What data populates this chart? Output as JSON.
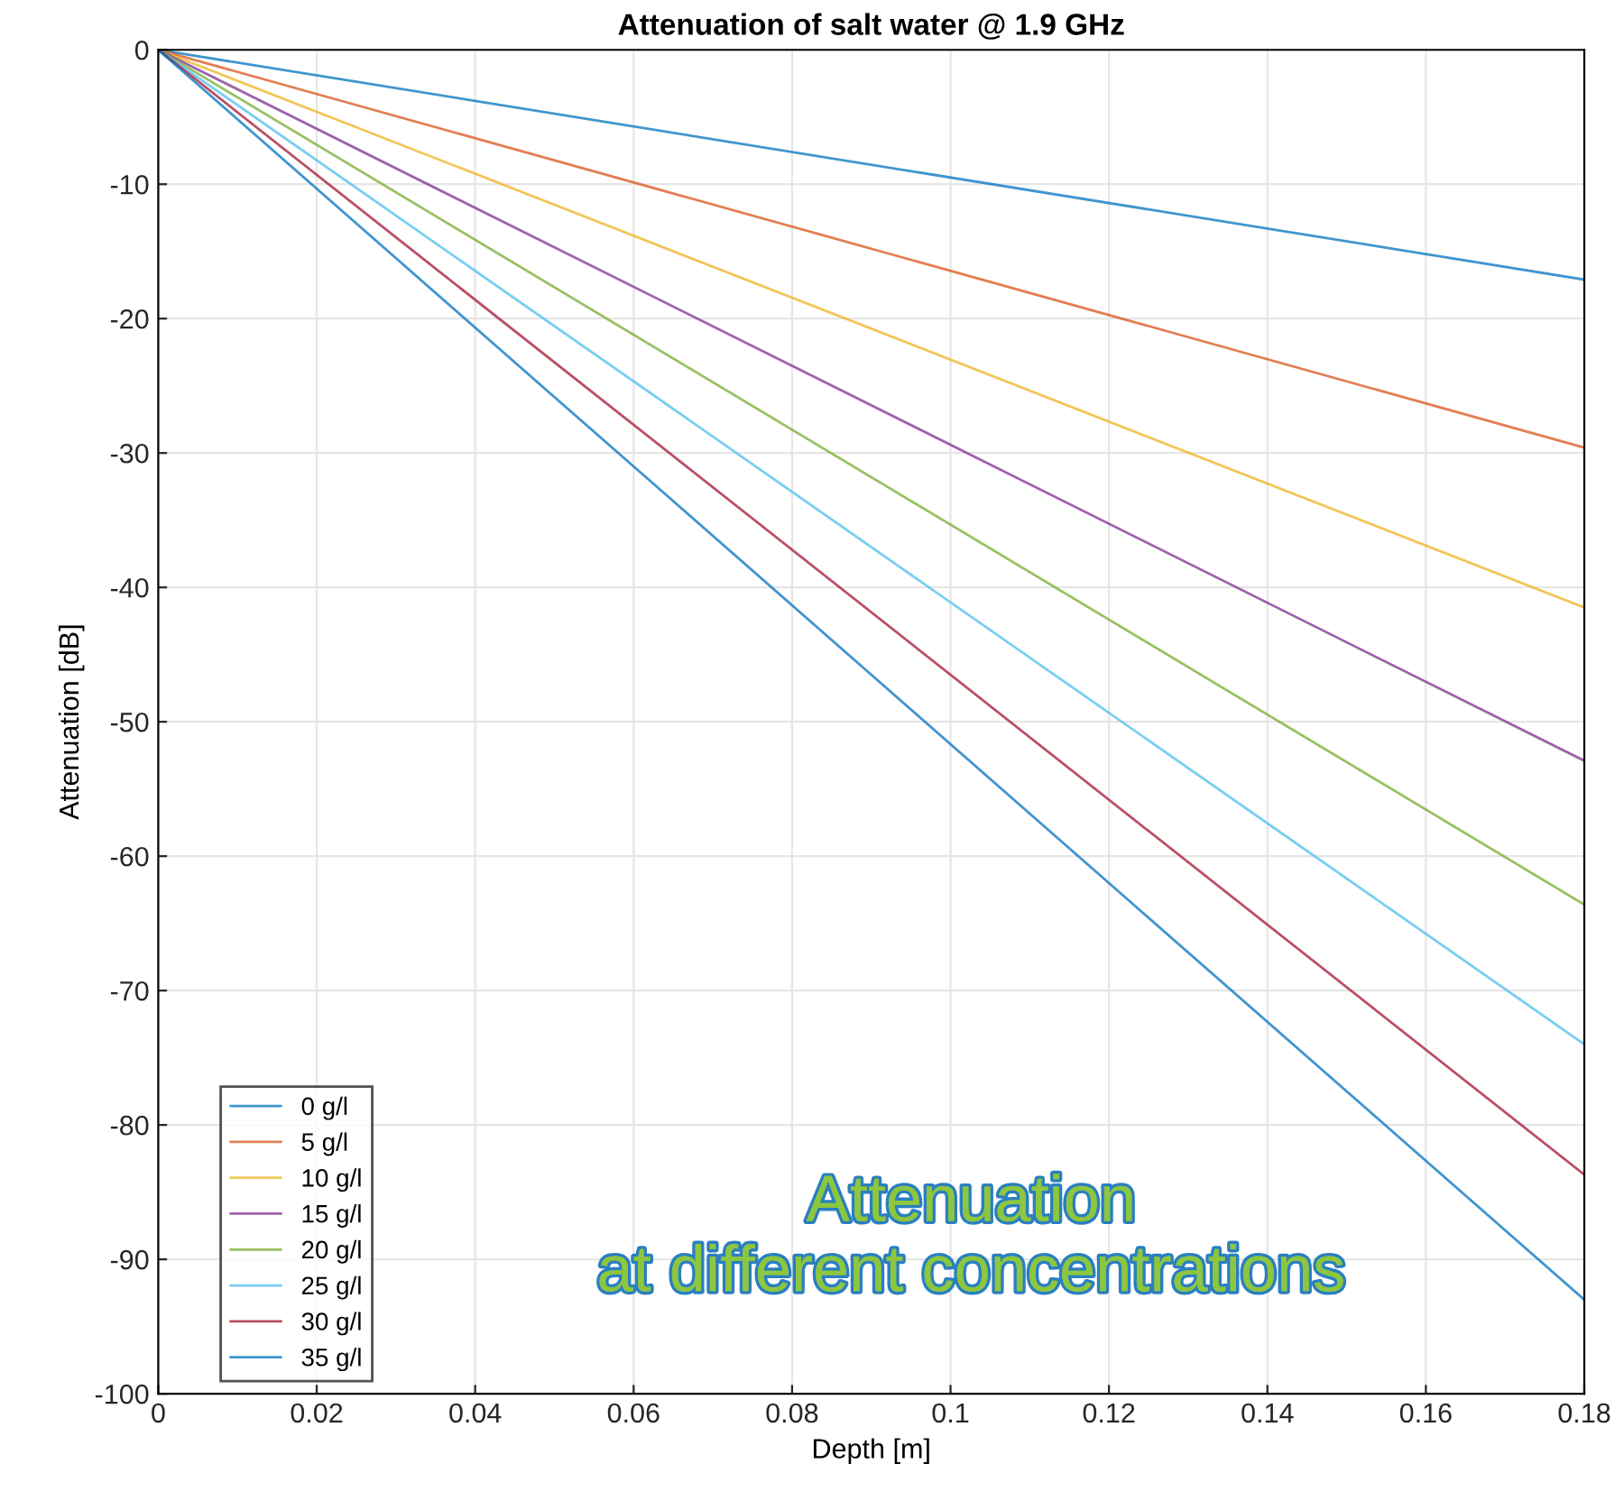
{
  "chart_data": {
    "type": "line",
    "title": "Attenuation of salt water @ 1.9 GHz",
    "xlabel": "Depth [m]",
    "ylabel": "Attenuation [dB]",
    "x": [
      0,
      0.18
    ],
    "series": [
      {
        "name": "0 g/l",
        "color": "#0072bd",
        "values": [
          0,
          -17.1
        ]
      },
      {
        "name": "5 g/l",
        "color": "#d95319",
        "values": [
          0,
          -29.6
        ]
      },
      {
        "name": "10 g/l",
        "color": "#edb120",
        "values": [
          0,
          -41.5
        ]
      },
      {
        "name": "15 g/l",
        "color": "#7e2f8e",
        "values": [
          0,
          -52.9
        ]
      },
      {
        "name": "20 g/l",
        "color": "#77ac30",
        "values": [
          0,
          -63.6
        ]
      },
      {
        "name": "25 g/l",
        "color": "#4dbeee",
        "values": [
          0,
          -74
        ]
      },
      {
        "name": "30 g/l",
        "color": "#a2142f",
        "values": [
          0,
          -83.7
        ]
      },
      {
        "name": "35 g/l",
        "color": "#0072bd",
        "values": [
          0,
          -93
        ]
      }
    ],
    "xlim": [
      0,
      0.18
    ],
    "xticks": [
      0,
      0.02,
      0.04,
      0.06,
      0.08,
      0.1,
      0.12,
      0.14,
      0.16,
      0.18
    ],
    "ylim": [
      -100,
      0
    ],
    "yticks": [
      -100,
      -90,
      -80,
      -70,
      -60,
      -50,
      -40,
      -30,
      -20,
      -10,
      0
    ],
    "grid": true,
    "legend": "bottom left",
    "marker": "none",
    "line_style": "solid",
    "annotations": [
      "Attenuation\nat different concentrations"
    ]
  }
}
